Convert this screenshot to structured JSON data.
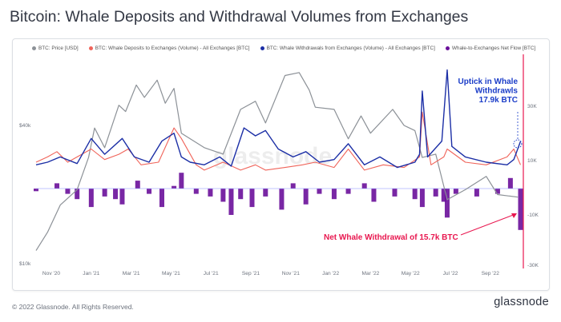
{
  "title": "Bitcoin: Whale Deposits and Withdrawal Volumes from Exchanges",
  "footer": {
    "copyright": "© 2022 Glassnode. All Rights Reserved.",
    "brand": "glassnode"
  },
  "watermark": "glassnode",
  "colors": {
    "price": "#8c9197",
    "deposits": "#f0645a",
    "withdrawals": "#1c2fa6",
    "netflow": "#6a0f9a",
    "annotation_blue": "#1a3cc8",
    "annotation_red": "#e8174f",
    "marker": "#e8174f"
  },
  "chart_data": {
    "type": "line",
    "legend": [
      "BTC: Price [USD]",
      "BTC: Whale Deposits to Exchanges (Volume) - All Exchanges [BTC]",
      "BTC: Whale Withdrawals from Exchanges (Volume) - All Exchanges [BTC]",
      "Whale-to-Exchanges Net Flow [BTC]"
    ],
    "x_ticks": [
      "Nov '20",
      "Jan '21",
      "Mar '21",
      "May '21",
      "Jul '21",
      "Sep '21",
      "Nov '21",
      "Jan '22",
      "Mar '22",
      "May '22",
      "Jul '22",
      "Sep '22"
    ],
    "y_left_ticks": [
      "$40k",
      "$10k"
    ],
    "y_left_scale": "log",
    "y_right_ticks": [
      "30K",
      "10K",
      "-10K",
      "-30K"
    ],
    "price_usd": [
      [
        "2020-10-15",
        11400
      ],
      [
        "2020-11-01",
        13700
      ],
      [
        "2020-11-20",
        18000
      ],
      [
        "2020-12-15",
        21000
      ],
      [
        "2021-01-01",
        29000
      ],
      [
        "2021-01-10",
        39000
      ],
      [
        "2021-01-25",
        32000
      ],
      [
        "2021-02-15",
        49000
      ],
      [
        "2021-02-25",
        46000
      ],
      [
        "2021-03-13",
        60000
      ],
      [
        "2021-03-25",
        53000
      ],
      [
        "2021-04-13",
        63000
      ],
      [
        "2021-04-25",
        50000
      ],
      [
        "2021-05-08",
        58000
      ],
      [
        "2021-05-19",
        37000
      ],
      [
        "2021-06-22",
        32000
      ],
      [
        "2021-07-20",
        30000
      ],
      [
        "2021-08-15",
        47000
      ],
      [
        "2021-09-06",
        51000
      ],
      [
        "2021-09-21",
        41000
      ],
      [
        "2021-10-20",
        66000
      ],
      [
        "2021-11-10",
        68000
      ],
      [
        "2021-11-25",
        57000
      ],
      [
        "2021-12-04",
        48000
      ],
      [
        "2022-01-01",
        47000
      ],
      [
        "2022-01-22",
        35000
      ],
      [
        "2022-02-10",
        44000
      ],
      [
        "2022-02-24",
        37000
      ],
      [
        "2022-03-29",
        47000
      ],
      [
        "2022-04-15",
        40000
      ],
      [
        "2022-05-01",
        38000
      ],
      [
        "2022-05-12",
        29000
      ],
      [
        "2022-06-01",
        30000
      ],
      [
        "2022-06-18",
        19000
      ],
      [
        "2022-07-15",
        21000
      ],
      [
        "2022-08-15",
        24000
      ],
      [
        "2022-09-01",
        20000
      ],
      [
        "2022-10-01",
        19500
      ]
    ],
    "deposits_btc": [
      [
        "2020-10-15",
        10000
      ],
      [
        "2020-11-01",
        12000
      ],
      [
        "2020-11-15",
        14000
      ],
      [
        "2020-12-01",
        10000
      ],
      [
        "2021-01-05",
        15000
      ],
      [
        "2021-01-25",
        11000
      ],
      [
        "2021-02-15",
        13000
      ],
      [
        "2021-03-01",
        15000
      ],
      [
        "2021-03-20",
        9000
      ],
      [
        "2021-04-15",
        10000
      ],
      [
        "2021-05-08",
        23000
      ],
      [
        "2021-05-19",
        19000
      ],
      [
        "2021-06-10",
        9000
      ],
      [
        "2021-06-22",
        7000
      ],
      [
        "2021-07-20",
        10000
      ],
      [
        "2021-08-15",
        7000
      ],
      [
        "2021-09-06",
        9000
      ],
      [
        "2021-09-21",
        7000
      ],
      [
        "2021-10-20",
        8000
      ],
      [
        "2021-11-15",
        9000
      ],
      [
        "2021-12-04",
        10000
      ],
      [
        "2022-01-01",
        8000
      ],
      [
        "2022-01-22",
        15000
      ],
      [
        "2022-02-15",
        7000
      ],
      [
        "2022-03-15",
        9000
      ],
      [
        "2022-04-15",
        8000
      ],
      [
        "2022-05-08",
        12000
      ],
      [
        "2022-05-12",
        29000
      ],
      [
        "2022-05-25",
        9000
      ],
      [
        "2022-06-13",
        12000
      ],
      [
        "2022-06-18",
        15000
      ],
      [
        "2022-07-15",
        10000
      ],
      [
        "2022-08-15",
        9000
      ],
      [
        "2022-09-15",
        12000
      ],
      [
        "2022-09-25",
        15000
      ],
      [
        "2022-10-05",
        9000
      ]
    ],
    "withdrawals_btc": [
      [
        "2020-10-15",
        9000
      ],
      [
        "2020-11-01",
        10000
      ],
      [
        "2020-11-20",
        12000
      ],
      [
        "2020-12-15",
        9500
      ],
      [
        "2021-01-05",
        19000
      ],
      [
        "2021-01-25",
        13000
      ],
      [
        "2021-02-20",
        19000
      ],
      [
        "2021-03-10",
        12000
      ],
      [
        "2021-04-01",
        10000
      ],
      [
        "2021-04-20",
        18000
      ],
      [
        "2021-05-08",
        21000
      ],
      [
        "2021-05-19",
        12000
      ],
      [
        "2021-06-01",
        10000
      ],
      [
        "2021-06-22",
        9000
      ],
      [
        "2021-07-15",
        12000
      ],
      [
        "2021-08-01",
        8500
      ],
      [
        "2021-08-20",
        23000
      ],
      [
        "2021-09-06",
        20000
      ],
      [
        "2021-09-21",
        22000
      ],
      [
        "2021-10-10",
        15000
      ],
      [
        "2021-11-01",
        12000
      ],
      [
        "2021-11-20",
        14000
      ],
      [
        "2021-12-10",
        10000
      ],
      [
        "2022-01-01",
        11000
      ],
      [
        "2022-01-22",
        17000
      ],
      [
        "2022-02-15",
        9000
      ],
      [
        "2022-03-10",
        12000
      ],
      [
        "2022-04-05",
        8000
      ],
      [
        "2022-05-01",
        10000
      ],
      [
        "2022-05-08",
        13000
      ],
      [
        "2022-05-12",
        37000
      ],
      [
        "2022-05-20",
        12000
      ],
      [
        "2022-06-10",
        18000
      ],
      [
        "2022-06-18",
        45000
      ],
      [
        "2022-06-25",
        16000
      ],
      [
        "2022-07-15",
        12000
      ],
      [
        "2022-08-15",
        10000
      ],
      [
        "2022-09-15",
        9000
      ],
      [
        "2022-09-25",
        11000
      ],
      [
        "2022-10-05",
        17900
      ]
    ],
    "netflow_btc": [
      [
        "2020-10-15",
        -1000
      ],
      [
        "2020-11-15",
        2000
      ],
      [
        "2020-12-01",
        -2000
      ],
      [
        "2020-12-15",
        -4000
      ],
      [
        "2021-01-05",
        -7000
      ],
      [
        "2021-01-25",
        -3000
      ],
      [
        "2021-02-10",
        -4000
      ],
      [
        "2021-02-20",
        -6000
      ],
      [
        "2021-03-15",
        3000
      ],
      [
        "2021-04-01",
        -2000
      ],
      [
        "2021-04-20",
        -7000
      ],
      [
        "2021-05-08",
        1000
      ],
      [
        "2021-05-19",
        6000
      ],
      [
        "2021-06-10",
        -2000
      ],
      [
        "2021-07-01",
        -3000
      ],
      [
        "2021-07-20",
        -5000
      ],
      [
        "2021-08-01",
        -10000
      ],
      [
        "2021-08-15",
        -4000
      ],
      [
        "2021-09-01",
        -7000
      ],
      [
        "2021-09-21",
        -3000
      ],
      [
        "2021-10-15",
        -8000
      ],
      [
        "2021-11-01",
        2000
      ],
      [
        "2021-11-20",
        -6000
      ],
      [
        "2021-12-10",
        -2000
      ],
      [
        "2022-01-01",
        -4000
      ],
      [
        "2022-01-22",
        -2000
      ],
      [
        "2022-02-15",
        2000
      ],
      [
        "2022-03-01",
        -5000
      ],
      [
        "2022-04-01",
        -3000
      ],
      [
        "2022-05-01",
        -4000
      ],
      [
        "2022-05-12",
        -7000
      ],
      [
        "2022-06-01",
        -3000
      ],
      [
        "2022-06-13",
        -5000
      ],
      [
        "2022-06-18",
        -11000
      ],
      [
        "2022-07-01",
        -2000
      ],
      [
        "2022-08-01",
        -3000
      ],
      [
        "2022-09-01",
        -2000
      ],
      [
        "2022-09-20",
        4000
      ],
      [
        "2022-10-05",
        -15700
      ]
    ],
    "annotations": [
      {
        "text_lines": [
          "Uptick in Whale",
          "Withdrawls",
          "17.9k BTC"
        ],
        "date": "2022-10-05",
        "value": 17900
      },
      {
        "text": "Net Whale Withdrawal of 15.7k BTC",
        "date": "2022-10-05",
        "value": -15700
      }
    ]
  }
}
